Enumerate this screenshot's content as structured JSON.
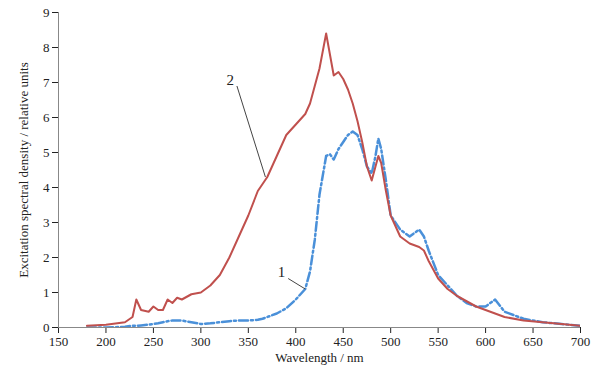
{
  "chart_data": {
    "type": "line",
    "x_label": "Wavelength / nm",
    "y_label": "Excitation spectral density / relative units",
    "x": [
      180,
      200,
      220,
      228,
      232,
      237,
      245,
      250,
      255,
      260,
      265,
      270,
      275,
      280,
      290,
      300,
      310,
      320,
      330,
      340,
      350,
      360,
      365,
      370,
      380,
      390,
      400,
      410,
      415,
      420,
      425,
      432,
      436,
      440,
      445,
      450,
      455,
      460,
      465,
      470,
      475,
      480,
      484,
      487,
      490,
      495,
      500,
      510,
      520,
      530,
      535,
      540,
      550,
      560,
      570,
      580,
      590,
      600,
      610,
      620,
      640,
      660,
      680,
      700
    ],
    "series": [
      {
        "name": "1",
        "color": "#4a90d9",
        "line_style": "dashdot",
        "values": [
          0,
          0,
          0.02,
          0.05,
          0.05,
          0.06,
          0.08,
          0.1,
          0.12,
          0.15,
          0.18,
          0.2,
          0.2,
          0.2,
          0.15,
          0.1,
          0.12,
          0.15,
          0.18,
          0.2,
          0.2,
          0.22,
          0.25,
          0.3,
          0.4,
          0.55,
          0.8,
          1.1,
          1.6,
          2.5,
          3.8,
          4.9,
          4.95,
          4.8,
          5.1,
          5.3,
          5.5,
          5.6,
          5.5,
          5.1,
          4.6,
          4.4,
          4.9,
          5.4,
          5.1,
          4.2,
          3.2,
          2.8,
          2.6,
          2.8,
          2.6,
          2.2,
          1.5,
          1.2,
          0.9,
          0.7,
          0.6,
          0.6,
          0.8,
          0.45,
          0.25,
          0.15,
          0.1,
          0.05
        ]
      },
      {
        "name": "2",
        "color": "#c0504d",
        "line_style": "solid",
        "values": [
          0.05,
          0.08,
          0.15,
          0.3,
          0.8,
          0.5,
          0.45,
          0.6,
          0.5,
          0.5,
          0.8,
          0.7,
          0.85,
          0.8,
          0.95,
          1.0,
          1.2,
          1.5,
          2.0,
          2.6,
          3.2,
          3.9,
          4.1,
          4.3,
          4.9,
          5.5,
          5.8,
          6.1,
          6.4,
          6.9,
          7.4,
          8.4,
          7.8,
          7.2,
          7.3,
          7.1,
          6.8,
          6.4,
          5.9,
          5.3,
          4.6,
          4.2,
          4.6,
          4.9,
          4.7,
          3.9,
          3.2,
          2.6,
          2.4,
          2.3,
          2.2,
          1.9,
          1.4,
          1.1,
          0.9,
          0.75,
          0.6,
          0.5,
          0.4,
          0.3,
          0.2,
          0.15,
          0.1,
          0.05
        ]
      }
    ],
    "xlim": [
      150,
      700
    ],
    "ylim": [
      0,
      9
    ],
    "xticks": [
      150,
      200,
      250,
      300,
      350,
      400,
      450,
      500,
      550,
      600,
      650,
      700
    ],
    "yticks": [
      0,
      1,
      2,
      3,
      4,
      5,
      6,
      7,
      8,
      9
    ],
    "grid": false,
    "annotations": [
      {
        "text": "2",
        "x": 338,
        "y": 6.9,
        "x_end": 368,
        "y_end": 4.3
      },
      {
        "text": "1",
        "x": 392,
        "y": 1.4,
        "x_end": 410,
        "y_end": 1.1
      }
    ]
  }
}
